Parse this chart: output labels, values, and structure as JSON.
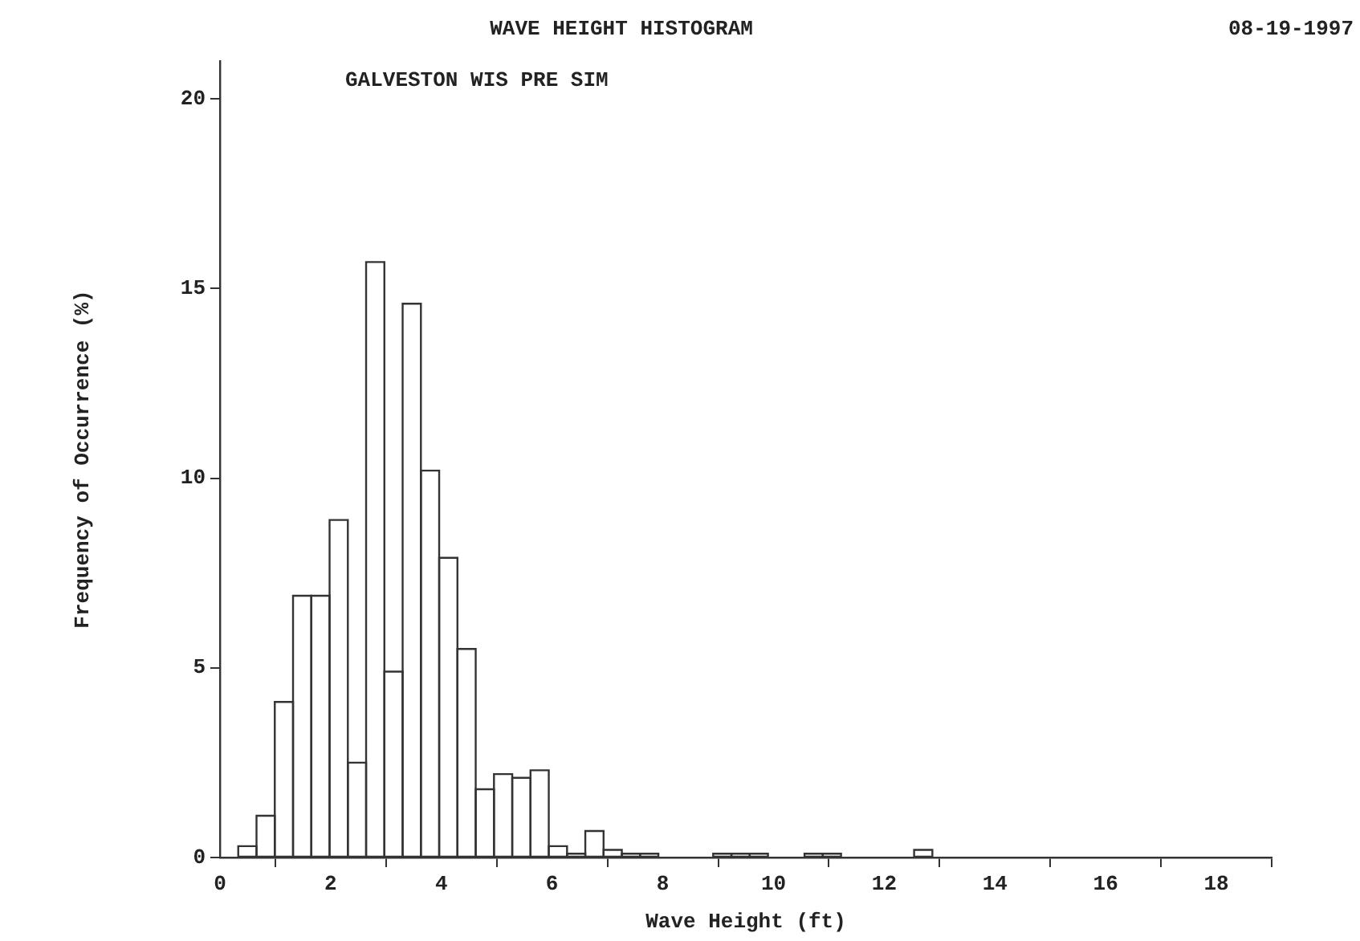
{
  "chart_data": {
    "type": "histogram",
    "title": "WAVE HEIGHT HISTOGRAM",
    "subtitle": "GALVESTON WIS PRE SIM",
    "annotations": [
      "08-19-1997"
    ],
    "xlabel": "Wave Height (ft)",
    "ylabel": "Frequency of Occurrence (%)",
    "bins": [
      0.33,
      0.66,
      0.99,
      1.32,
      1.65,
      1.98,
      2.31,
      2.64,
      2.97,
      3.3,
      3.63,
      3.96,
      4.29,
      4.62,
      4.95,
      5.28,
      5.61,
      5.94,
      6.27,
      6.6,
      6.93,
      7.26,
      7.59,
      7.92,
      8.25,
      8.58,
      8.91,
      9.24,
      9.57,
      9.9,
      10.23,
      10.56,
      10.89,
      11.22,
      11.55,
      11.88,
      12.21,
      12.54,
      12.87
    ],
    "values": [
      0.3,
      1.1,
      4.1,
      6.9,
      6.9,
      8.9,
      2.5,
      15.7,
      4.9,
      14.6,
      10.2,
      7.9,
      5.5,
      1.8,
      2.2,
      2.1,
      2.3,
      0.3,
      0.1,
      0.7,
      0.2,
      0.1,
      0.1,
      0,
      0,
      0,
      0.1,
      0.1,
      0.1,
      0,
      0,
      0.1,
      0.1,
      0,
      0,
      0,
      0,
      0.2
    ],
    "color": "#333333",
    "xlim": [
      0,
      19
    ],
    "xticks": [
      0,
      2,
      4,
      6,
      8,
      10,
      12,
      14,
      16,
      18
    ],
    "ylim": [
      0,
      21
    ],
    "yticks": [
      0,
      5,
      10,
      15,
      20
    ],
    "grid": false,
    "legend": false
  }
}
